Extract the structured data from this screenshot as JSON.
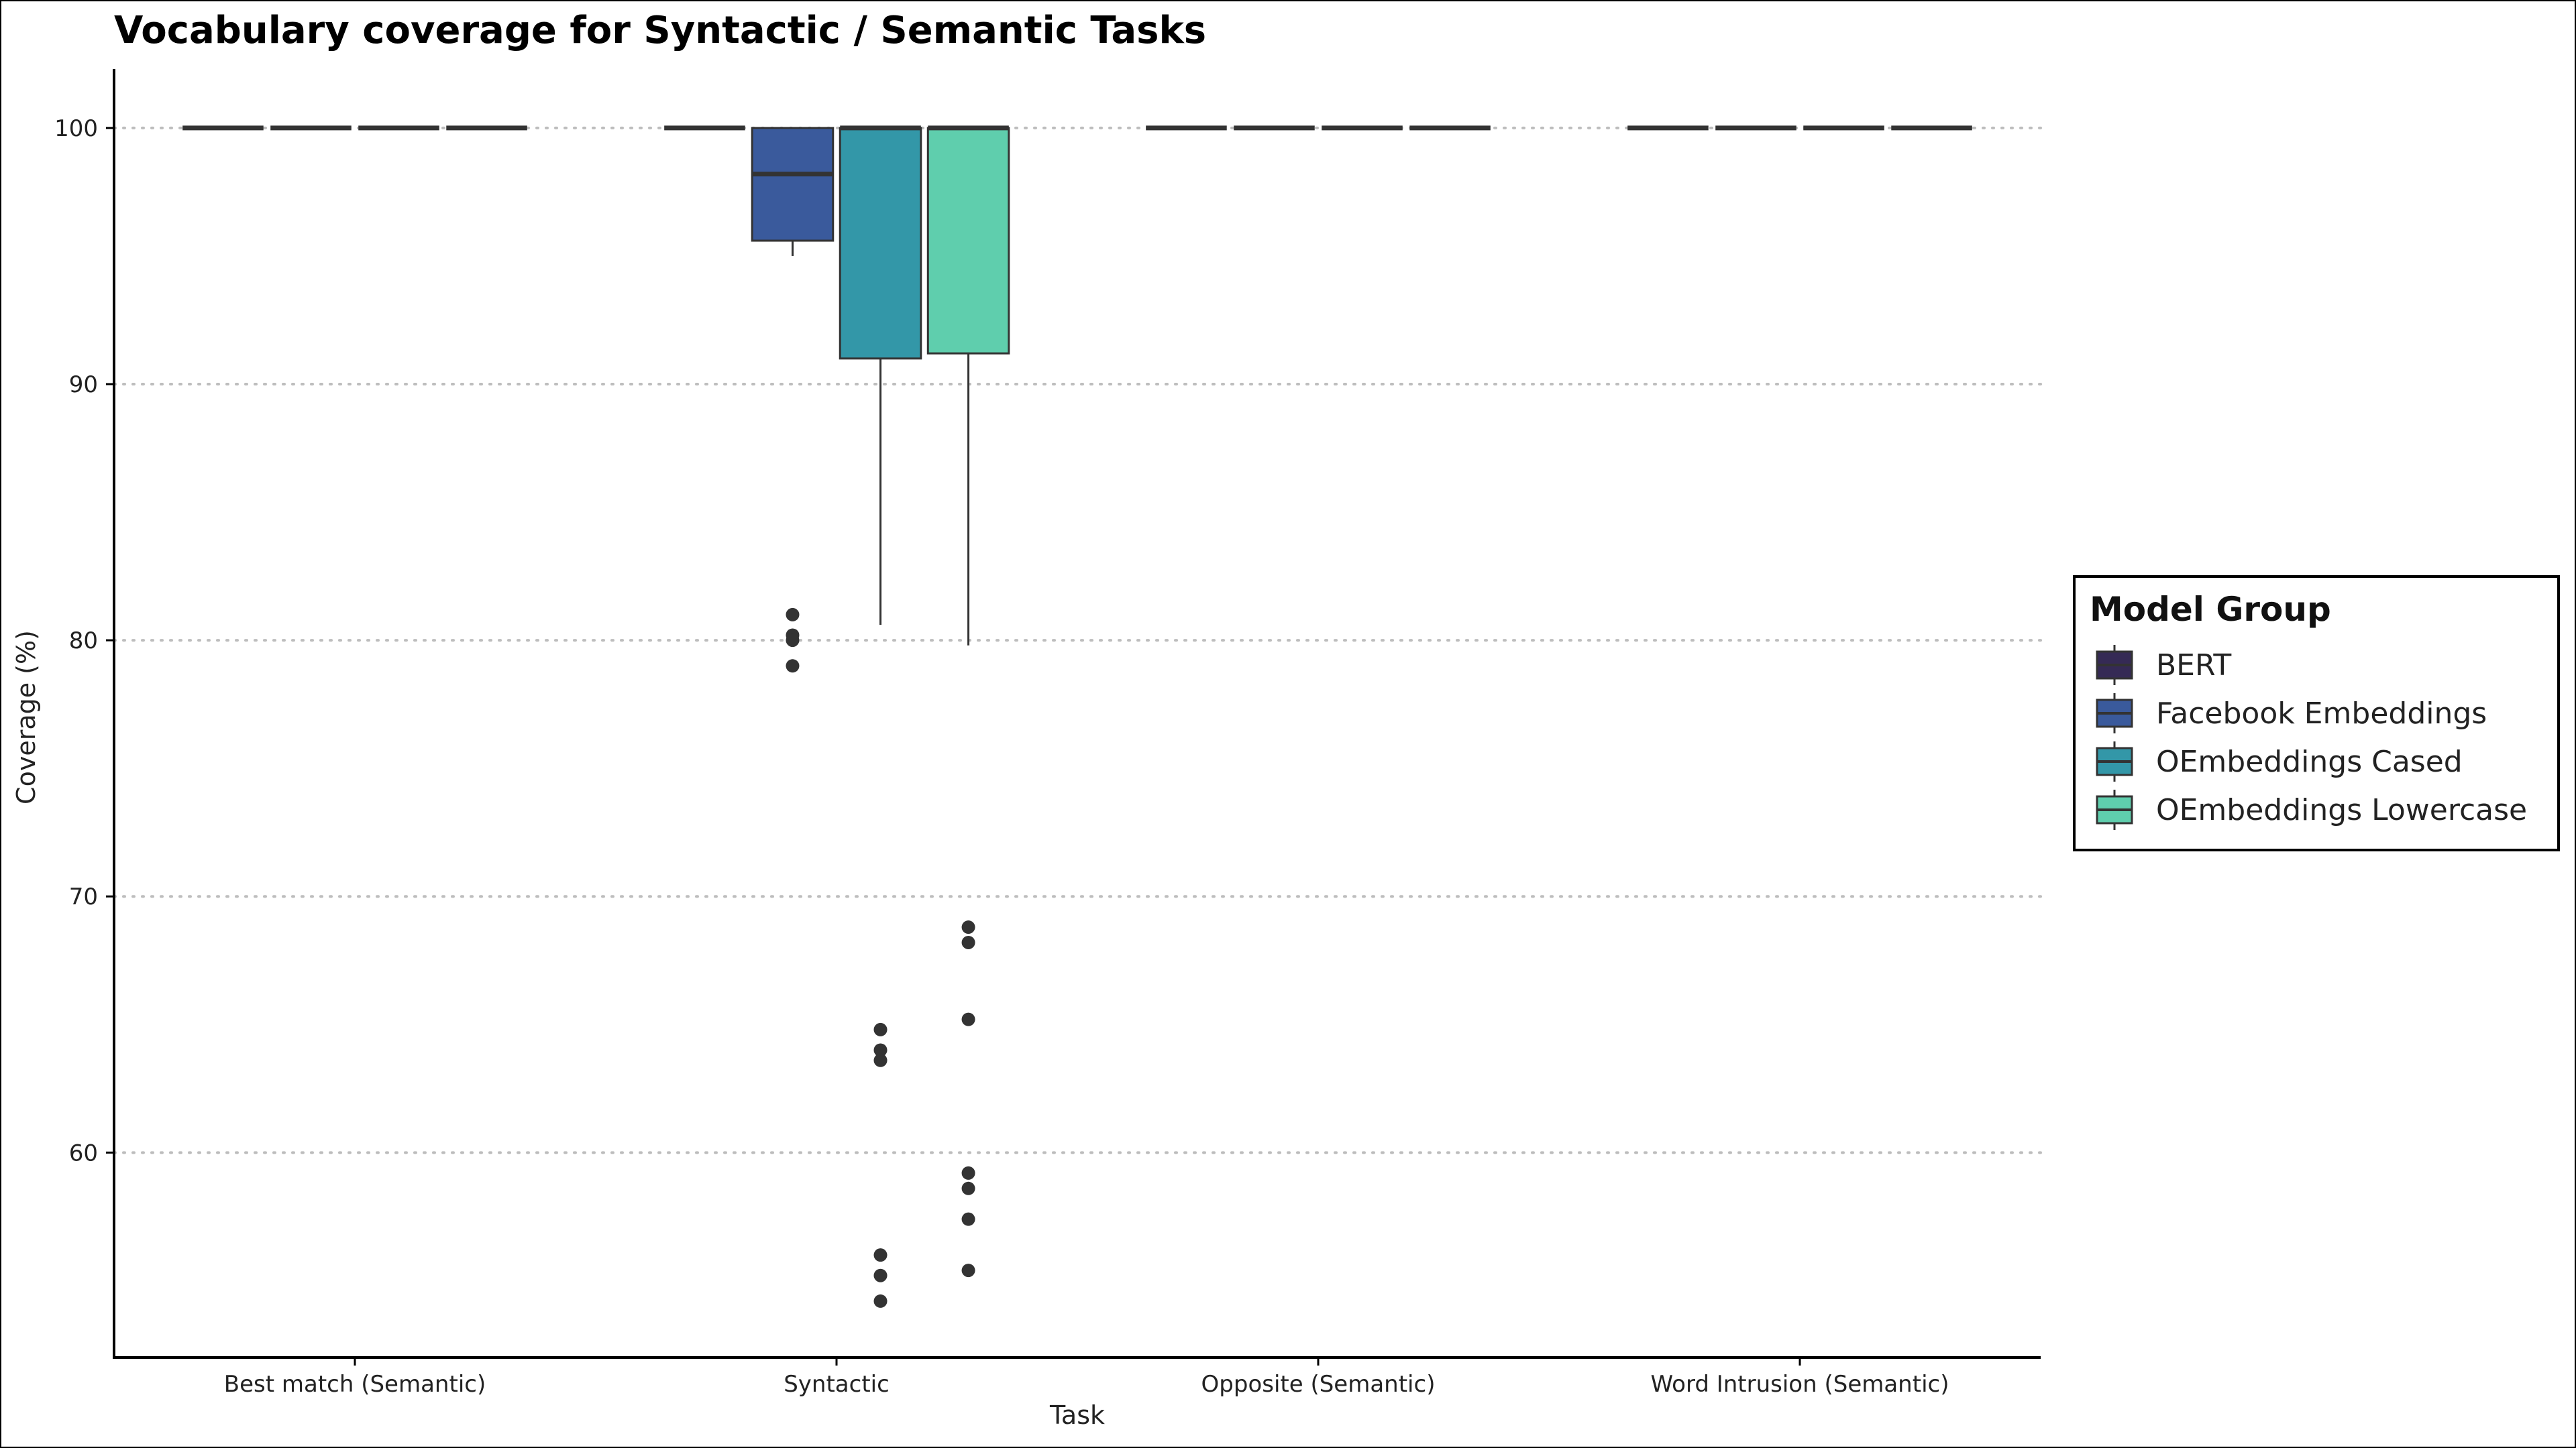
{
  "chart_data": {
    "type": "box",
    "title": "Vocabulary coverage for Syntactic / Semantic Tasks",
    "xlabel": "Task",
    "ylabel": "Coverage (%)",
    "ylim": [
      52,
      102.3
    ],
    "yticks": [
      60,
      70,
      80,
      90,
      100
    ],
    "grid": "horizontal dotted",
    "categories": [
      "Best match (Semantic)",
      "Syntactic",
      "Opposite (Semantic)",
      "Word Intrusion (Semantic)"
    ],
    "legend": {
      "title": "Model Group",
      "position": "right"
    },
    "series": [
      {
        "name": "BERT",
        "color": "#352a55",
        "boxes": [
          {
            "min": 100,
            "q1": 100,
            "median": 100,
            "q3": 100,
            "max": 100,
            "outliers": []
          },
          {
            "min": 100,
            "q1": 100,
            "median": 100,
            "q3": 100,
            "max": 100,
            "outliers": []
          },
          {
            "min": 100,
            "q1": 100,
            "median": 100,
            "q3": 100,
            "max": 100,
            "outliers": []
          },
          {
            "min": 100,
            "q1": 100,
            "median": 100,
            "q3": 100,
            "max": 100,
            "outliers": []
          }
        ]
      },
      {
        "name": "Facebook Embeddings",
        "color": "#3a5a9c",
        "boxes": [
          {
            "min": 100,
            "q1": 100,
            "median": 100,
            "q3": 100,
            "max": 100,
            "outliers": []
          },
          {
            "min": 95.0,
            "q1": 95.6,
            "median": 98.2,
            "q3": 100,
            "max": 100,
            "outliers": [
              81.0,
              80.2,
              80.0,
              79.0
            ]
          },
          {
            "min": 100,
            "q1": 100,
            "median": 100,
            "q3": 100,
            "max": 100,
            "outliers": []
          },
          {
            "min": 100,
            "q1": 100,
            "median": 100,
            "q3": 100,
            "max": 100,
            "outliers": []
          }
        ]
      },
      {
        "name": "OEmbeddings Cased",
        "color": "#3397a8",
        "boxes": [
          {
            "min": 100,
            "q1": 100,
            "median": 100,
            "q3": 100,
            "max": 100,
            "outliers": []
          },
          {
            "min": 80.6,
            "q1": 91.0,
            "median": 100,
            "q3": 100,
            "max": 100,
            "outliers": [
              64.8,
              64.0,
              63.6,
              56.0,
              55.2,
              54.2
            ]
          },
          {
            "min": 100,
            "q1": 100,
            "median": 100,
            "q3": 100,
            "max": 100,
            "outliers": []
          },
          {
            "min": 100,
            "q1": 100,
            "median": 100,
            "q3": 100,
            "max": 100,
            "outliers": []
          }
        ]
      },
      {
        "name": "OEmbeddings Lowercase",
        "color": "#5fcead",
        "boxes": [
          {
            "min": 100,
            "q1": 100,
            "median": 100,
            "q3": 100,
            "max": 100,
            "outliers": []
          },
          {
            "min": 79.8,
            "q1": 91.2,
            "median": 100,
            "q3": 100,
            "max": 100,
            "outliers": [
              68.8,
              68.2,
              65.2,
              59.2,
              58.6,
              57.4,
              55.4
            ]
          },
          {
            "min": 100,
            "q1": 100,
            "median": 100,
            "q3": 100,
            "max": 100,
            "outliers": []
          },
          {
            "min": 100,
            "q1": 100,
            "median": 100,
            "q3": 100,
            "max": 100,
            "outliers": []
          }
        ]
      }
    ]
  }
}
